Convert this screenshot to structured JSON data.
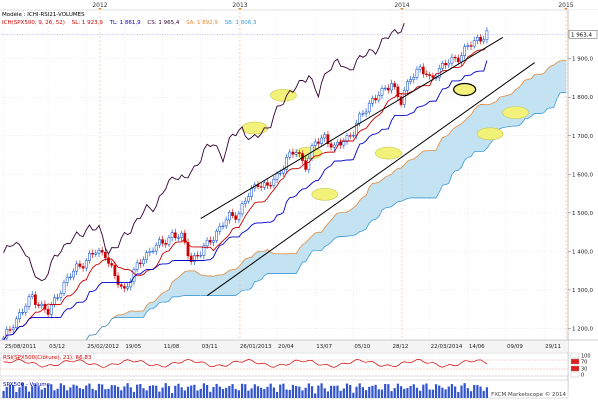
{
  "chart_data": {
    "type": "candlestick",
    "top_axis": {
      "years": [
        "2012",
        "2013",
        "2014",
        "2015"
      ]
    },
    "legend": {
      "line1": "Modèle : ICHI-RSI21-VOLUMES",
      "line2": [
        {
          "label": "ICH(SPX500, 9, 26, 52)",
          "color": "#cc0000"
        },
        {
          "label": "SL: 1 923,9",
          "color": "#cc0000"
        },
        {
          "label": "TL: 1 861,9",
          "color": "#0000cc"
        },
        {
          "label": "CS: 1 965,4",
          "color": "#330033"
        },
        {
          "label": "SA: 1 892,9",
          "color": "#e08a3c"
        },
        {
          "label": "SB: 1 806,3",
          "color": "#3b9bd6"
        }
      ]
    },
    "y_axis": {
      "ticks": [
        1200,
        1300,
        1400,
        1500,
        1600,
        1700,
        1800,
        1900
      ],
      "tick_labels": [
        "1 200,0",
        "1 300,0",
        "1 400,0",
        "1 500,0",
        "1 600,0",
        "1 700,0",
        "1 800,0",
        "1 900,0"
      ],
      "ylim": [
        1170,
        1990
      ],
      "last_price": 1963.4,
      "last_price_label": "1 963,4"
    },
    "x_axis": {
      "tick_labels": [
        "25/08/2011",
        "03/12",
        "25/02/2012",
        "19/05",
        "11/08",
        "03/11",
        "26/01/2013",
        "20/04",
        "13/07",
        "05/10",
        "28/12",
        "22/03/2014",
        "14/06",
        "09/09",
        "29/11"
      ],
      "tick_positions": [
        0,
        14,
        26,
        38,
        50,
        62,
        74,
        86,
        98,
        110,
        122,
        134,
        146,
        158,
        170
      ],
      "n_slots": 178
    },
    "price_series_anchors": [
      [
        0,
        1170
      ],
      [
        3,
        1215
      ],
      [
        6,
        1245
      ],
      [
        9,
        1285
      ],
      [
        12,
        1255
      ],
      [
        14,
        1240
      ],
      [
        17,
        1290
      ],
      [
        20,
        1325
      ],
      [
        23,
        1360
      ],
      [
        26,
        1375
      ],
      [
        29,
        1400
      ],
      [
        32,
        1395
      ],
      [
        35,
        1330
      ],
      [
        38,
        1300
      ],
      [
        41,
        1345
      ],
      [
        44,
        1385
      ],
      [
        47,
        1410
      ],
      [
        50,
        1420
      ],
      [
        53,
        1445
      ],
      [
        56,
        1435
      ],
      [
        59,
        1380
      ],
      [
        62,
        1395
      ],
      [
        65,
        1430
      ],
      [
        68,
        1460
      ],
      [
        71,
        1490
      ],
      [
        74,
        1500
      ],
      [
        77,
        1545
      ],
      [
        80,
        1580
      ],
      [
        83,
        1565
      ],
      [
        86,
        1595
      ],
      [
        89,
        1640
      ],
      [
        92,
        1660
      ],
      [
        95,
        1625
      ],
      [
        98,
        1680
      ],
      [
        101,
        1700
      ],
      [
        104,
        1665
      ],
      [
        107,
        1690
      ],
      [
        110,
        1710
      ],
      [
        113,
        1760
      ],
      [
        116,
        1795
      ],
      [
        119,
        1810
      ],
      [
        122,
        1840
      ],
      [
        125,
        1785
      ],
      [
        128,
        1855
      ],
      [
        131,
        1875
      ],
      [
        134,
        1845
      ],
      [
        137,
        1875
      ],
      [
        140,
        1890
      ],
      [
        143,
        1905
      ],
      [
        146,
        1930
      ],
      [
        149,
        1950
      ],
      [
        152,
        1965
      ]
    ],
    "rsi_panel": {
      "label": "RSI(SPX500(Clôture), 21): 66,83",
      "scale": [
        "100",
        "70",
        "30",
        "0"
      ]
    },
    "volume_panel": {
      "label": "SPX500 - Volume"
    },
    "footer": "FXCM Marketscope © 2014",
    "colors": {
      "tenkan": "#cc0000",
      "kijun": "#0000cc",
      "chikou": "#330033",
      "span_a": "#e08a3c",
      "span_b": "#3b9bd6",
      "cloud_fill": "#b8ddf0",
      "candle_up": "#0044cc",
      "candle_down": "#cc0000",
      "trend_line": "#000000",
      "highlight": "#f2f27a",
      "last_price_line": "#8888ff"
    }
  }
}
